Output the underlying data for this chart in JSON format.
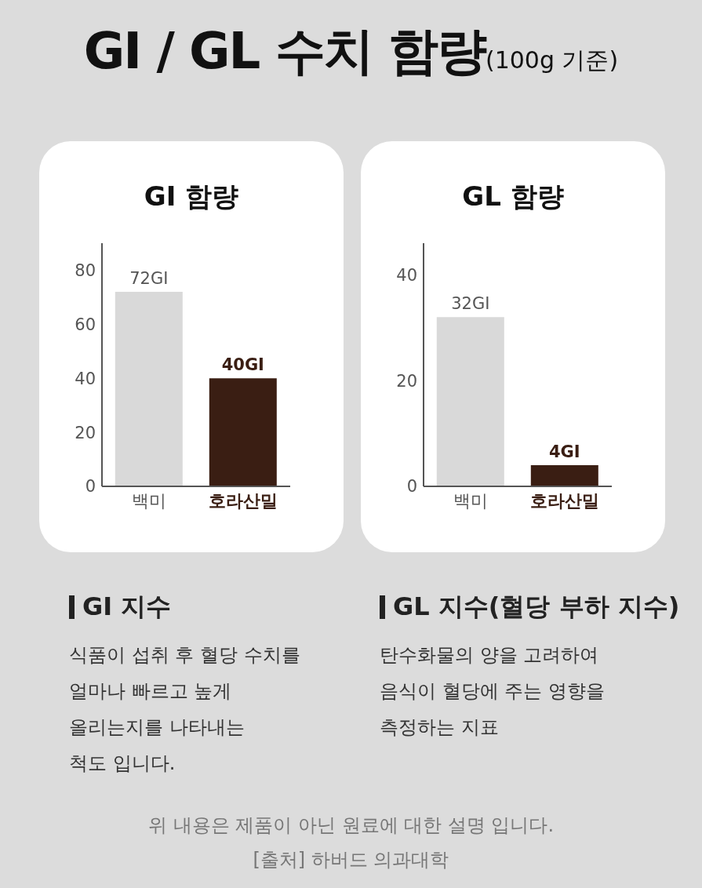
{
  "chart_data": [
    {
      "type": "bar",
      "title": "GI 함량",
      "categories": [
        "백미",
        "호라산밀"
      ],
      "values": [
        72,
        40
      ],
      "colors": [
        "#d9d9d9",
        "#3a1e13"
      ],
      "value_labels": [
        "72GI",
        "40GI"
      ],
      "ylim": [
        0,
        90
      ],
      "yticks": [
        0,
        20,
        40,
        60,
        80
      ]
    },
    {
      "type": "bar",
      "title": "GL 함량",
      "categories": [
        "백미",
        "호라산밀"
      ],
      "values": [
        32,
        4
      ],
      "colors": [
        "#d9d9d9",
        "#3a1e13"
      ],
      "value_labels": [
        "32GI",
        "4GI"
      ],
      "ylim": [
        0,
        46
      ],
      "yticks": [
        0,
        20,
        40
      ]
    },
    {
      "type": "other",
      "title": "GI / GL 수치 함량",
      "subtitle": "(100g 기준)",
      "annotations": [
        "GI 지수",
        "식품이 섭취 후 혈당 수치를\n얼마나 빠르고 높게\n올리는지를 나타내는\n척도 입니다.",
        "GL 지수(혈당 부하 지수)",
        "탄수화물의 양을 고려하여\n음식이 혈당에 주는 영향을\n측정하는 지표",
        "위 내용은 제품이 아닌 원료에 대한 설명 입니다.",
        "[출처] 하버드 의과대학"
      ]
    }
  ]
}
